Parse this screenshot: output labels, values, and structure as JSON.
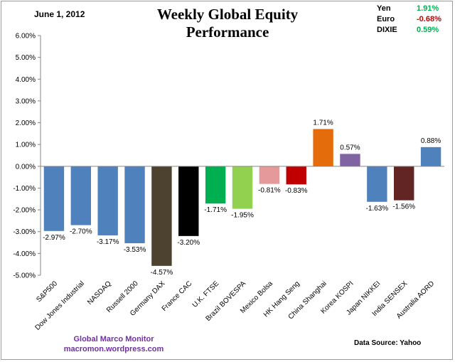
{
  "header": {
    "date": "June 1, 2012",
    "title": "Weekly Global Equity Performance"
  },
  "fx_panel": [
    {
      "label": "Yen",
      "value": "1.91%",
      "color": "#00b050"
    },
    {
      "label": "Euro",
      "value": "-0.68%",
      "color": "#c00000"
    },
    {
      "label": "DIXIE",
      "value": "0.59%",
      "color": "#00b050"
    }
  ],
  "footer": {
    "credit_line1": "Global  Marco  Monitor",
    "credit_line2": "macromon.wordpress.com",
    "source": "Data Source:    Yahoo"
  },
  "chart_data": {
    "type": "bar",
    "title": "Weekly Global Equity Performance",
    "ylim": [
      -5,
      6
    ],
    "ytick_step": 1,
    "categories": [
      "S&P500",
      "Dow Jones Industrial",
      "NASDAQ",
      "Russell 2000",
      "Germany DAX",
      "France CAC",
      "U.K. FTSE",
      "Brazil BOVESPA",
      "Mexico Bolsa",
      "HK Hang Seng",
      "China Shanghai",
      "Korea KOSPI",
      "Japan NIKKEI",
      "India SENSEX",
      "Australia AORD"
    ],
    "values": [
      -2.97,
      -2.7,
      -3.17,
      -3.53,
      -4.57,
      -3.2,
      -1.71,
      -1.95,
      -0.81,
      -0.83,
      1.71,
      0.57,
      -1.63,
      -1.56,
      0.88
    ],
    "labels": [
      "-2.97%",
      "-2.70%",
      "-3.17%",
      "-3.53%",
      "-4.57%",
      "-3.20%",
      "-1.71%",
      "-1.95%",
      "-0.81%",
      "-0.83%",
      "1.71%",
      "0.57%",
      "-1.63%",
      "-1.56%",
      "0.88%"
    ],
    "colors": [
      "#4f81bd",
      "#4f81bd",
      "#4f81bd",
      "#4f81bd",
      "#4d4130",
      "#000000",
      "#00b050",
      "#92d050",
      "#e6999a",
      "#c00000",
      "#e46c0a",
      "#8064a2",
      "#4f81bd",
      "#632523",
      "#4f81bd"
    ],
    "ytick_labels": [
      "-5.00%",
      "-4.00%",
      "-3.00%",
      "-2.00%",
      "-1.00%",
      "0.00%",
      "1.00%",
      "2.00%",
      "3.00%",
      "4.00%",
      "5.00%",
      "6.00%"
    ],
    "legend": "none",
    "grid": false
  }
}
